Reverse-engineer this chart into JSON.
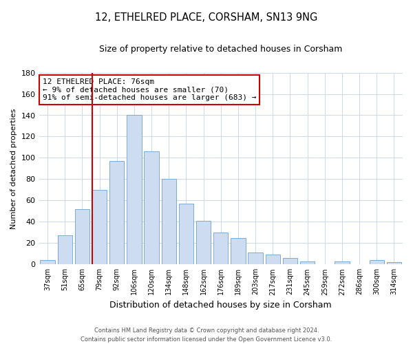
{
  "title": "12, ETHELRED PLACE, CORSHAM, SN13 9NG",
  "subtitle": "Size of property relative to detached houses in Corsham",
  "xlabel": "Distribution of detached houses by size in Corsham",
  "ylabel": "Number of detached properties",
  "bar_labels": [
    "37sqm",
    "51sqm",
    "65sqm",
    "79sqm",
    "92sqm",
    "106sqm",
    "120sqm",
    "134sqm",
    "148sqm",
    "162sqm",
    "176sqm",
    "189sqm",
    "203sqm",
    "217sqm",
    "231sqm",
    "245sqm",
    "259sqm",
    "272sqm",
    "286sqm",
    "300sqm",
    "314sqm"
  ],
  "bar_values": [
    4,
    27,
    52,
    70,
    97,
    140,
    106,
    80,
    57,
    41,
    30,
    25,
    11,
    9,
    6,
    3,
    0,
    3,
    0,
    4,
    2
  ],
  "bar_color": "#cddcf0",
  "bar_edge_color": "#7aaad4",
  "ylim": [
    0,
    180
  ],
  "yticks": [
    0,
    20,
    40,
    60,
    80,
    100,
    120,
    140,
    160,
    180
  ],
  "marker_bar_index": 3,
  "annotation_title": "12 ETHELRED PLACE: 76sqm",
  "annotation_line1": "← 9% of detached houses are smaller (70)",
  "annotation_line2": "91% of semi-detached houses are larger (683) →",
  "annotation_box_color": "#ffffff",
  "annotation_box_edge": "#cc0000",
  "marker_line_color": "#cc0000",
  "footer_line1": "Contains HM Land Registry data © Crown copyright and database right 2024.",
  "footer_line2": "Contains public sector information licensed under the Open Government Licence v3.0.",
  "background_color": "#ffffff",
  "grid_color": "#ccd8ec"
}
